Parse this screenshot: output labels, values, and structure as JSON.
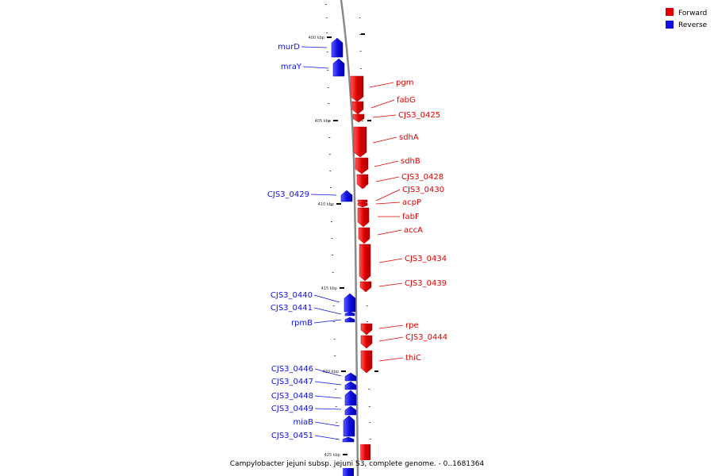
{
  "caption": "Campylobacter jejuni subsp. jejuni S3, complete genome. - 0..1681364",
  "legend": [
    {
      "name": "Forward",
      "color": "#e00000"
    },
    {
      "name": "Reverse",
      "color": "#1010e0"
    }
  ],
  "colors": {
    "forward": "#e00000",
    "reverse": "#1010e0",
    "backbone": "#808080",
    "tick": "#000000"
  },
  "chart_data": {
    "type": "linear-genome-map",
    "unit": "kbp",
    "ticks": [
      "400 kbp",
      "405 kbp",
      "410 kbp",
      "415 kbp",
      "420 kbp",
      "425 kbp"
    ],
    "genes": [
      {
        "name": "murD",
        "strand": "reverse"
      },
      {
        "name": "mraY",
        "strand": "reverse"
      },
      {
        "name": "pgm",
        "strand": "forward"
      },
      {
        "name": "fabG",
        "strand": "forward"
      },
      {
        "name": "CJS3_0425",
        "strand": "forward"
      },
      {
        "name": "sdhA",
        "strand": "forward"
      },
      {
        "name": "sdhB",
        "strand": "forward"
      },
      {
        "name": "CJS3_0428",
        "strand": "forward"
      },
      {
        "name": "CJS3_0429",
        "strand": "reverse"
      },
      {
        "name": "CJS3_0430",
        "strand": "forward"
      },
      {
        "name": "acpP",
        "strand": "forward"
      },
      {
        "name": "fabF",
        "strand": "forward"
      },
      {
        "name": "accA",
        "strand": "forward"
      },
      {
        "name": "CJS3_0434",
        "strand": "forward"
      },
      {
        "name": "CJS3_0439",
        "strand": "forward"
      },
      {
        "name": "CJS3_0440",
        "strand": "reverse"
      },
      {
        "name": "CJS3_0441",
        "strand": "reverse"
      },
      {
        "name": "rpmB",
        "strand": "reverse"
      },
      {
        "name": "rpe",
        "strand": "forward"
      },
      {
        "name": "CJS3_0444",
        "strand": "forward"
      },
      {
        "name": "thiC",
        "strand": "forward"
      },
      {
        "name": "CJS3_0446",
        "strand": "reverse"
      },
      {
        "name": "CJS3_0447",
        "strand": "reverse"
      },
      {
        "name": "CJS3_0448",
        "strand": "reverse"
      },
      {
        "name": "CJS3_0449",
        "strand": "reverse"
      },
      {
        "name": "miaB",
        "strand": "reverse"
      },
      {
        "name": "CJS3_0451",
        "strand": "reverse"
      }
    ]
  }
}
